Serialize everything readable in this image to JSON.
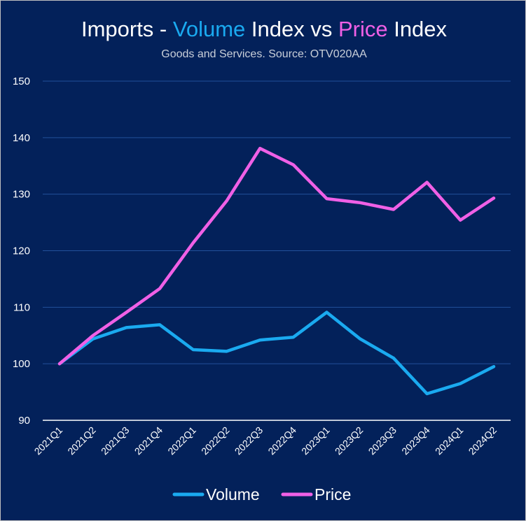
{
  "chart_data": {
    "type": "line",
    "title_parts": [
      {
        "text": "Imports - ",
        "color": "#ffffff"
      },
      {
        "text": "Volume",
        "color": "#1aaaf0"
      },
      {
        "text": " Index vs ",
        "color": "#ffffff"
      },
      {
        "text": "Price",
        "color": "#f060e6"
      },
      {
        "text": " Index",
        "color": "#ffffff"
      }
    ],
    "subtitle": "Goods and Services. Source: OTV020AA",
    "categories": [
      "2021Q1",
      "2021Q2",
      "2021Q3",
      "2021Q4",
      "2022Q1",
      "2022Q2",
      "2022Q3",
      "2022Q4",
      "2023Q1",
      "2023Q2",
      "2023Q3",
      "2023Q4",
      "2024Q1",
      "2024Q2"
    ],
    "ylim": [
      90,
      150
    ],
    "yticks": [
      90,
      100,
      110,
      120,
      130,
      140,
      150
    ],
    "grid": true,
    "legend_position": "bottom",
    "series": [
      {
        "name": "Volume",
        "color": "#1aaaf0",
        "values": [
          100,
          104.4,
          106.4,
          106.9,
          102.5,
          102.2,
          104.2,
          104.7,
          109.1,
          104.4,
          101.0,
          94.7,
          96.5,
          99.5
        ]
      },
      {
        "name": "Price",
        "color": "#f060e6",
        "values": [
          100,
          105.0,
          109.1,
          113.3,
          121.4,
          128.8,
          138.1,
          135.2,
          129.2,
          128.5,
          127.3,
          132.1,
          125.4,
          129.3
        ]
      }
    ]
  },
  "colors": {
    "background": "#03215a",
    "gridline": "#22509a",
    "axis": "#ffffff"
  }
}
